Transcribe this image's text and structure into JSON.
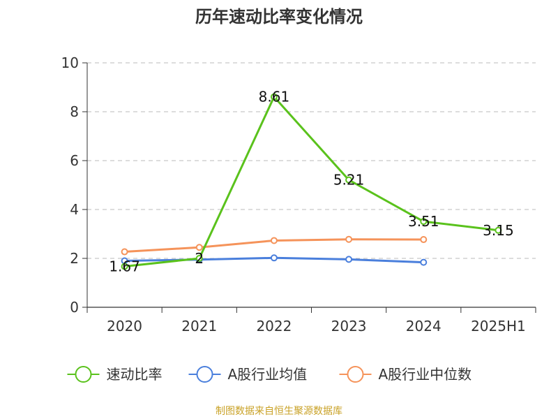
{
  "title": "历年速动比率变化情况",
  "footer": "制图数据来自恒生聚源数据库",
  "colors": {
    "footer": "#c9a227",
    "axis": "#333333",
    "grid": "#bbbbbb"
  },
  "chart_data": {
    "type": "line",
    "title": "历年速动比率变化情况",
    "categories": [
      "2020",
      "2021",
      "2022",
      "2023",
      "2024",
      "2025H1"
    ],
    "ylim": [
      0,
      10
    ],
    "yticks": [
      0,
      2,
      4,
      6,
      8,
      10
    ],
    "grid": true,
    "legend_position": "bottom",
    "series": [
      {
        "name": "速动比率",
        "color": "#5ac21c",
        "values": [
          1.67,
          2,
          8.61,
          5.21,
          3.51,
          3.15
        ],
        "labels": [
          "1.67",
          "2",
          "8.61",
          "5.21",
          "3.51",
          "3.15"
        ]
      },
      {
        "name": "A股行业均值",
        "color": "#4a7fdc",
        "values": [
          1.9,
          1.95,
          2.02,
          1.96,
          1.84,
          null
        ]
      },
      {
        "name": "A股行业中位数",
        "color": "#f5935a",
        "values": [
          2.27,
          2.45,
          2.73,
          2.78,
          2.77,
          null
        ]
      }
    ]
  }
}
